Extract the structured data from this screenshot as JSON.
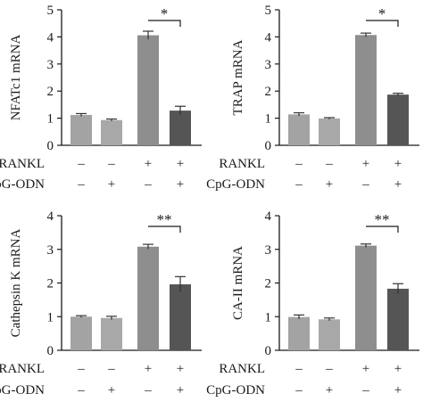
{
  "treatment_labels": {
    "rankl": "RANKL",
    "cpg": "CpG-ODN"
  },
  "treatment_signs": {
    "rankl": [
      "–",
      "–",
      "+",
      "+"
    ],
    "cpg": [
      "–",
      "+",
      "–",
      "+"
    ]
  },
  "colors": {
    "bars": [
      "#a3a3a3",
      "#a8a8a8",
      "#8e8e8e",
      "#555555"
    ],
    "axis": "#1a1a1a"
  },
  "chart_data": [
    {
      "type": "bar",
      "ylabel": "NFATc1 mRNA",
      "ylim": [
        0,
        5
      ],
      "yticks": [
        "0",
        "1",
        "2",
        "3",
        "4",
        "5"
      ],
      "values": [
        1.12,
        0.93,
        4.06,
        1.28
      ],
      "errors": [
        0.05,
        0.04,
        0.15,
        0.16
      ],
      "significance": {
        "between": [
          3,
          4
        ],
        "label": "*"
      }
    },
    {
      "type": "bar",
      "ylabel": "TRAP mRNA",
      "ylim": [
        0,
        5
      ],
      "yticks": [
        "0",
        "1",
        "2",
        "3",
        "4",
        "5"
      ],
      "values": [
        1.14,
        0.99,
        4.07,
        1.87
      ],
      "errors": [
        0.06,
        0.03,
        0.07,
        0.05
      ],
      "significance": {
        "between": [
          3,
          4
        ],
        "label": "*"
      }
    },
    {
      "type": "bar",
      "ylabel": "Cathepsin K mRNA",
      "ylim": [
        0,
        4
      ],
      "yticks": [
        "0",
        "1",
        "2",
        "3",
        "4"
      ],
      "values": [
        1.0,
        0.96,
        3.08,
        1.96
      ],
      "errors": [
        0.03,
        0.05,
        0.07,
        0.23
      ],
      "significance": {
        "between": [
          3,
          4
        ],
        "label": "**"
      }
    },
    {
      "type": "bar",
      "ylabel": "CA-II mRNA",
      "ylim": [
        0,
        4
      ],
      "yticks": [
        "0",
        "1",
        "2",
        "3",
        "4"
      ],
      "values": [
        0.99,
        0.92,
        3.11,
        1.83
      ],
      "errors": [
        0.06,
        0.04,
        0.05,
        0.15
      ],
      "significance": {
        "between": [
          3,
          4
        ],
        "label": "**"
      }
    }
  ]
}
